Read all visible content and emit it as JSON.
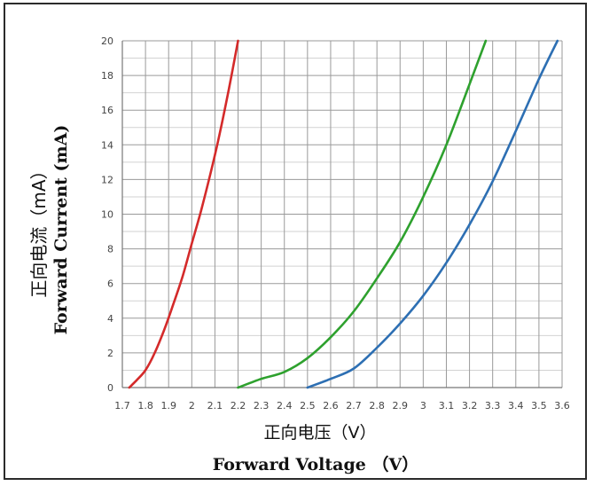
{
  "chart_data": {
    "type": "line",
    "xlabel_cn": "正向电压（V）",
    "xlabel_en": "Forward Voltage （V）",
    "ylabel_cn": "正向电流（mA）",
    "ylabel_en": "Forward Current (mA)",
    "xlim": [
      1.7,
      3.6
    ],
    "ylim": [
      0,
      20
    ],
    "x_ticks": [
      1.7,
      1.8,
      1.9,
      2.0,
      2.1,
      2.2,
      2.3,
      2.4,
      2.5,
      2.6,
      2.7,
      2.8,
      2.9,
      3.0,
      3.1,
      3.2,
      3.3,
      3.4,
      3.5,
      3.6
    ],
    "x_tick_labels": [
      "1.7",
      "1.8",
      "1.9",
      "2",
      "2.1",
      "2.2",
      "2.3",
      "2.4",
      "2.5",
      "2.6",
      "2.7",
      "2.8",
      "2.9",
      "3",
      "3.1",
      "3.2",
      "3.3",
      "3.4",
      "3.5",
      "3.6"
    ],
    "y_ticks": [
      0,
      2,
      4,
      6,
      8,
      10,
      12,
      14,
      16,
      18,
      20
    ],
    "grid": true,
    "series": [
      {
        "color": "#d42a2a",
        "x": [
          1.73,
          1.76,
          1.8,
          1.84,
          1.88,
          1.92,
          1.96,
          2.0,
          2.04,
          2.08,
          2.12,
          2.16,
          2.2
        ],
        "y": [
          0,
          0.4,
          1.0,
          2.0,
          3.3,
          4.8,
          6.4,
          8.3,
          10.2,
          12.3,
          14.6,
          17.2,
          20.0
        ]
      },
      {
        "color": "#2ea12e",
        "x": [
          2.2,
          2.3,
          2.4,
          2.5,
          2.6,
          2.7,
          2.8,
          2.9,
          3.0,
          3.1,
          3.2,
          3.27
        ],
        "y": [
          0,
          0.5,
          0.9,
          1.7,
          2.9,
          4.4,
          6.3,
          8.4,
          11.0,
          14.0,
          17.5,
          20.0
        ]
      },
      {
        "color": "#2d6fb3",
        "x": [
          2.5,
          2.6,
          2.7,
          2.8,
          2.9,
          3.0,
          3.1,
          3.2,
          3.3,
          3.4,
          3.5,
          3.58
        ],
        "y": [
          0,
          0.5,
          1.1,
          2.3,
          3.7,
          5.3,
          7.2,
          9.4,
          11.9,
          14.8,
          17.8,
          20.0
        ]
      }
    ]
  }
}
